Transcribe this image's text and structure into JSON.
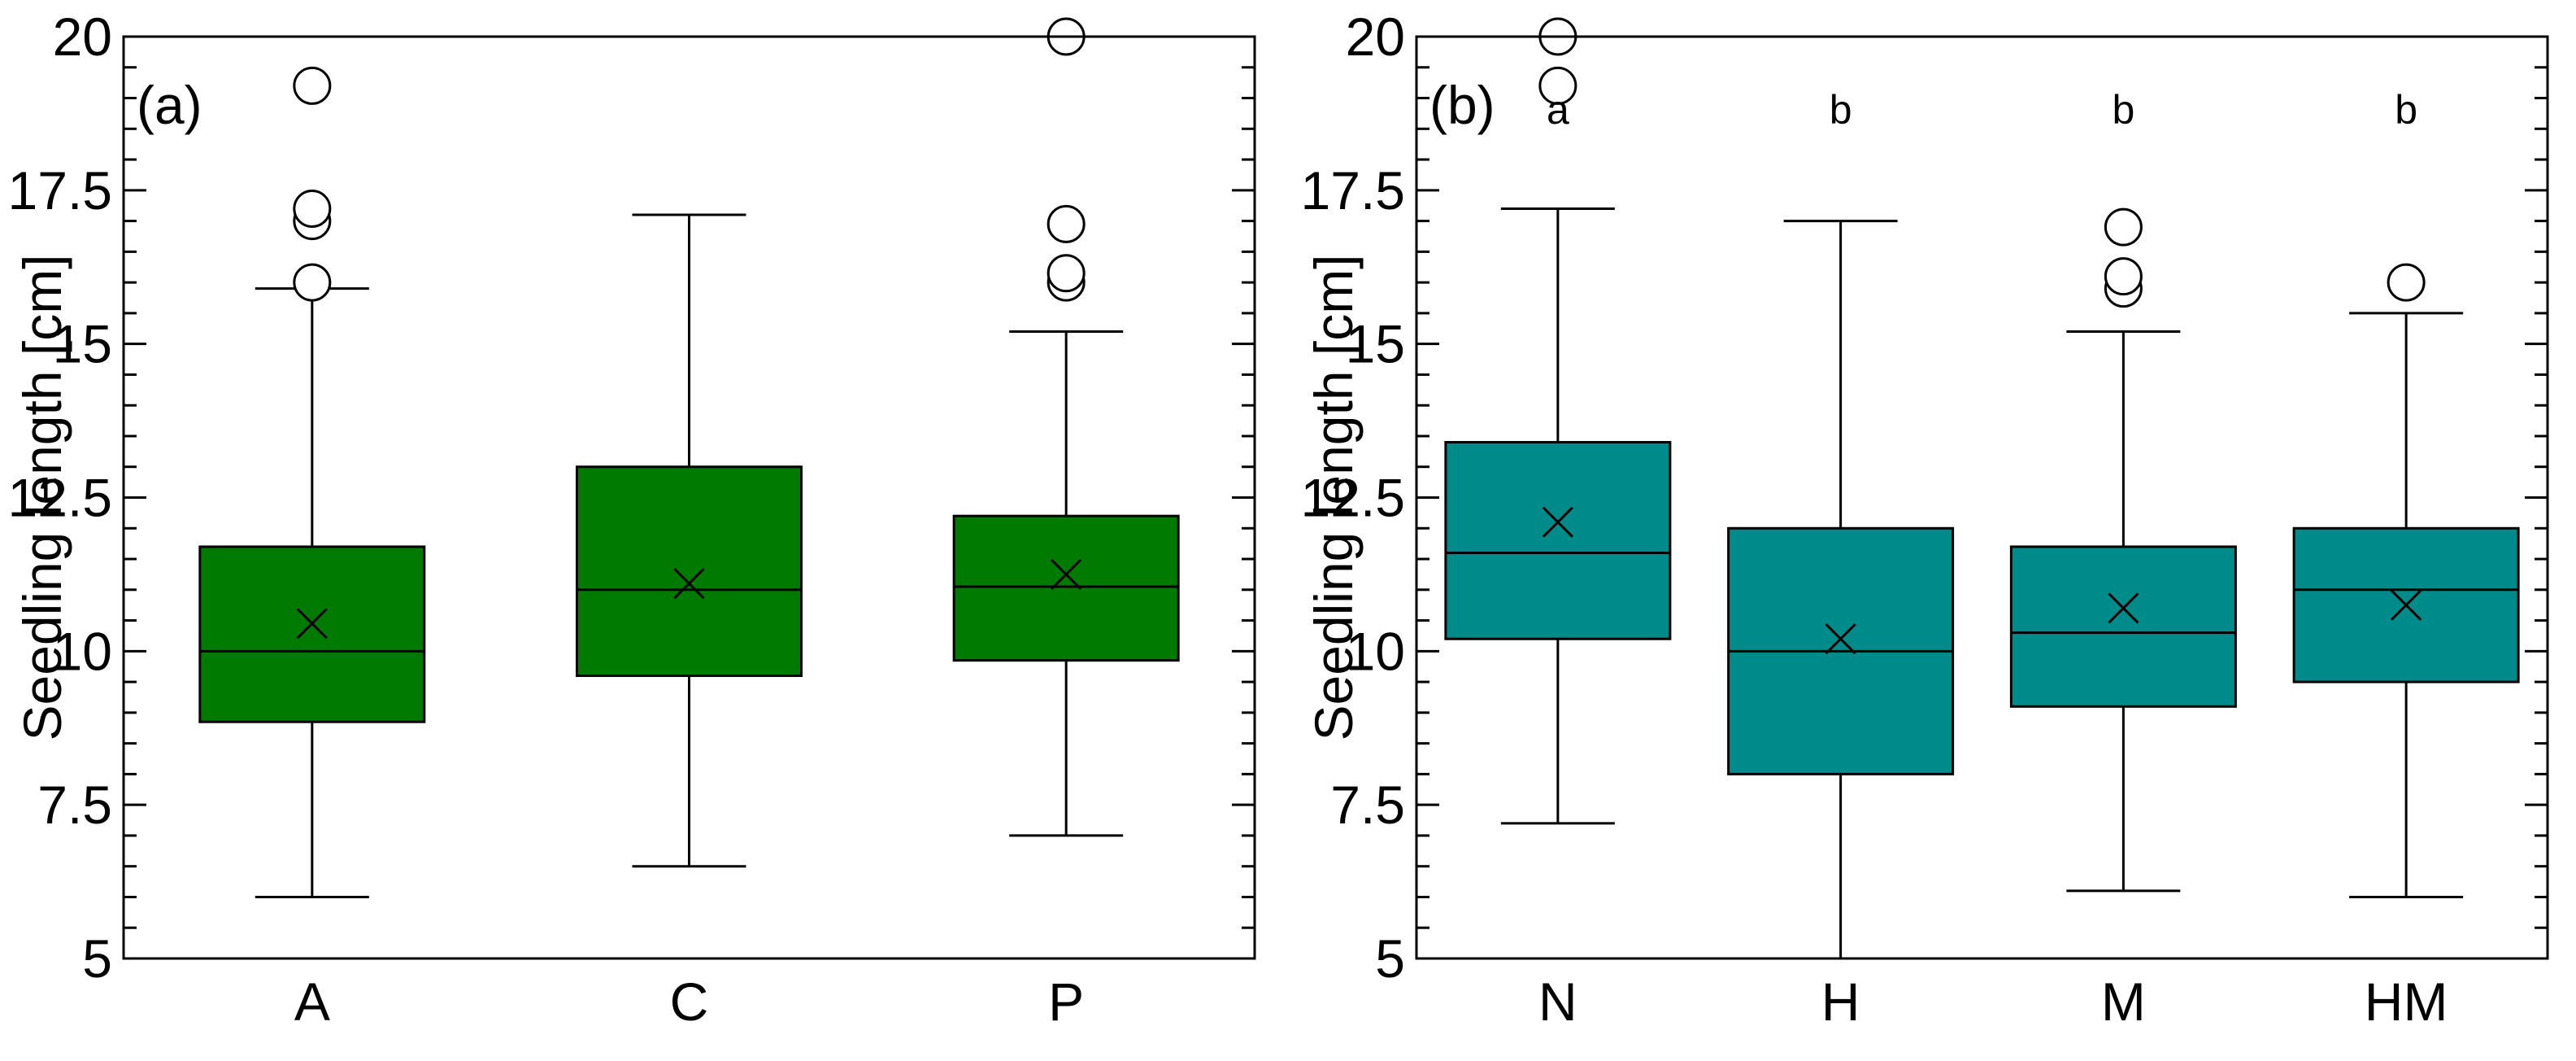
{
  "chart_data": [
    {
      "type": "box",
      "panel_label": "(a)",
      "ylabel": "Seedling length [cm]",
      "xlabel": "",
      "ylim": [
        5,
        20
      ],
      "yticks": [
        "5",
        "7.5",
        "10",
        "12.5",
        "15",
        "17.5",
        "20"
      ],
      "ytick_values": [
        5,
        7.5,
        10,
        12.5,
        15,
        17.5,
        20
      ],
      "box_color": "#007a00",
      "categories": [
        "A",
        "C",
        "P"
      ],
      "boxes": [
        {
          "name": "A",
          "whisker_low": 6.0,
          "q1": 8.85,
          "median": 10.0,
          "q3": 11.7,
          "whisker_high": 15.9,
          "mean": 10.45,
          "outliers": [
            16.0,
            17.0,
            17.2,
            19.2
          ]
        },
        {
          "name": "C",
          "whisker_low": 6.5,
          "q1": 9.6,
          "median": 11.0,
          "q3": 13.0,
          "whisker_high": 17.1,
          "mean": 11.1,
          "outliers": []
        },
        {
          "name": "P",
          "whisker_low": 7.0,
          "q1": 9.85,
          "median": 11.05,
          "q3": 12.2,
          "whisker_high": 15.2,
          "mean": 11.25,
          "outliers": [
            16.0,
            16.15,
            16.95,
            20.0
          ]
        }
      ],
      "significance_letters": []
    },
    {
      "type": "box",
      "panel_label": "(b)",
      "ylabel": "Seedling length [cm]",
      "xlabel": "",
      "ylim": [
        5,
        20
      ],
      "yticks": [
        "5",
        "7.5",
        "10",
        "12.5",
        "15",
        "17.5",
        "20"
      ],
      "ytick_values": [
        5,
        7.5,
        10,
        12.5,
        15,
        17.5,
        20
      ],
      "box_color": "#008b8b",
      "categories": [
        "N",
        "H",
        "M",
        "HM"
      ],
      "boxes": [
        {
          "name": "N",
          "whisker_low": 7.2,
          "q1": 10.2,
          "median": 11.6,
          "q3": 13.4,
          "whisker_high": 17.2,
          "mean": 12.1,
          "outliers": [
            19.2,
            20.0
          ]
        },
        {
          "name": "H",
          "whisker_low": 5.0,
          "q1": 8.0,
          "median": 10.0,
          "q3": 12.0,
          "whisker_high": 17.0,
          "mean": 10.2,
          "outliers": []
        },
        {
          "name": "M",
          "whisker_low": 6.1,
          "q1": 9.1,
          "median": 10.3,
          "q3": 11.7,
          "whisker_high": 15.2,
          "mean": 10.7,
          "outliers": [
            15.9,
            16.1,
            16.9
          ]
        },
        {
          "name": "HM",
          "whisker_low": 6.0,
          "q1": 9.5,
          "median": 11.0,
          "q3": 12.0,
          "whisker_high": 15.5,
          "mean": 10.75,
          "outliers": [
            16.0
          ]
        }
      ],
      "significance_letters": [
        "a",
        "b",
        "b",
        "b"
      ]
    }
  ]
}
